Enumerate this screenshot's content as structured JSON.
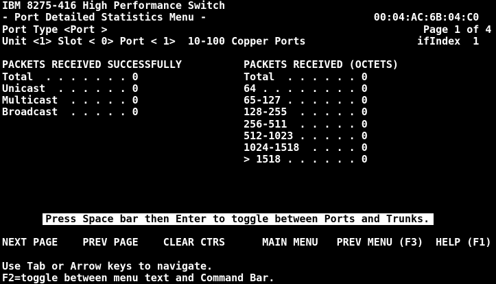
{
  "colors": {
    "background": "#000000",
    "foreground": "#ffffff",
    "highlight_bg": "#ffffff",
    "highlight_fg": "#000000"
  },
  "screen": {
    "title": "IBM 8275-416 High Performance Switch",
    "menu_name": "- Port Detailed Statistics Menu -",
    "mac_address": "00:04:AC:6B:04:C0",
    "page_indicator": "Page 1 of 4",
    "port_type": {
      "label": "Port Type",
      "value": "<Port >"
    },
    "selectors": {
      "unit_label": "Unit",
      "unit_value": "<1>",
      "slot_label": "Slot",
      "slot_value": "< 0>",
      "port_label": "Port",
      "port_value": "< 1>",
      "media_type": "10-100 Copper Ports",
      "ifindex_label": "ifIndex",
      "ifindex_value": "1"
    }
  },
  "stats_left": {
    "title": "PACKETS RECEIVED SUCCESSFULLY",
    "rows": [
      {
        "label": "Total",
        "leader": ". . . . . . .",
        "value": "0"
      },
      {
        "label": "Unicast",
        "leader": ". . . . . .",
        "value": "0"
      },
      {
        "label": "Multicast",
        "leader": ". . . . .",
        "value": "0"
      },
      {
        "label": "Broadcast",
        "leader": ". . . . .",
        "value": "0"
      }
    ]
  },
  "stats_right": {
    "title": "PACKETS RECEIVED (OCTETS)",
    "rows": [
      {
        "label": "Total",
        "leader": ". . . . . .",
        "value": "0"
      },
      {
        "label": "64",
        "leader": ". . . . . . . .",
        "value": "0"
      },
      {
        "label": "65-127",
        "leader": ". . . . . .",
        "value": "0"
      },
      {
        "label": "128-255",
        "leader": ". . . . .",
        "value": "0"
      },
      {
        "label": "256-511",
        "leader": ". . . . .",
        "value": "0"
      },
      {
        "label": "512-1023",
        "leader": ". . . . .",
        "value": "0"
      },
      {
        "label": "1024-1518",
        "leader": ". . . .",
        "value": "0"
      },
      {
        "label": "> 1518",
        "leader": ". . . . . .",
        "value": "0"
      }
    ]
  },
  "message_bar": "Press Space bar then Enter to toggle between Ports and Trunks.",
  "command_bar": {
    "next_page": "NEXT PAGE",
    "prev_page": "PREV PAGE",
    "clear_ctrs": "CLEAR CTRS",
    "main_menu": "MAIN MENU",
    "prev_menu": "PREV MENU (F3)",
    "help": "HELP (F1)"
  },
  "footer": {
    "line1": "Use Tab or Arrow keys to navigate.",
    "line2": "F2=toggle between menu text and Command Bar."
  }
}
